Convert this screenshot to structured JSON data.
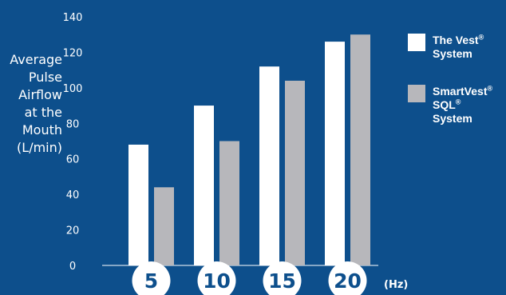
{
  "chart_data": {
    "type": "bar",
    "categories": [
      "5",
      "10",
      "15",
      "20"
    ],
    "x_unit": "(Hz)",
    "ylabel_lines": [
      "Average",
      "Pulse",
      "Airflow",
      "at the",
      "Mouth",
      "(L/min)"
    ],
    "ylim": [
      0,
      140
    ],
    "yticks": [
      0,
      20,
      40,
      60,
      80,
      100,
      120,
      140
    ],
    "grid": false,
    "legend_position": "top-right",
    "series": [
      {
        "name": "The Vest® System",
        "legend_lines": [
          "The Vest®",
          "System"
        ],
        "color": "#ffffff",
        "values": [
          68,
          90,
          112,
          126
        ]
      },
      {
        "name": "SmartVest® SQL® System",
        "legend_lines": [
          "SmartVest®",
          "SQL®",
          "System"
        ],
        "color": "#b7b7bb",
        "values": [
          44,
          70,
          104,
          130
        ]
      }
    ]
  },
  "colors": {
    "background": "#0d4f8c",
    "text": "#ffffff",
    "circle_fill": "#ffffff",
    "circle_text": "#0d4f8c"
  }
}
